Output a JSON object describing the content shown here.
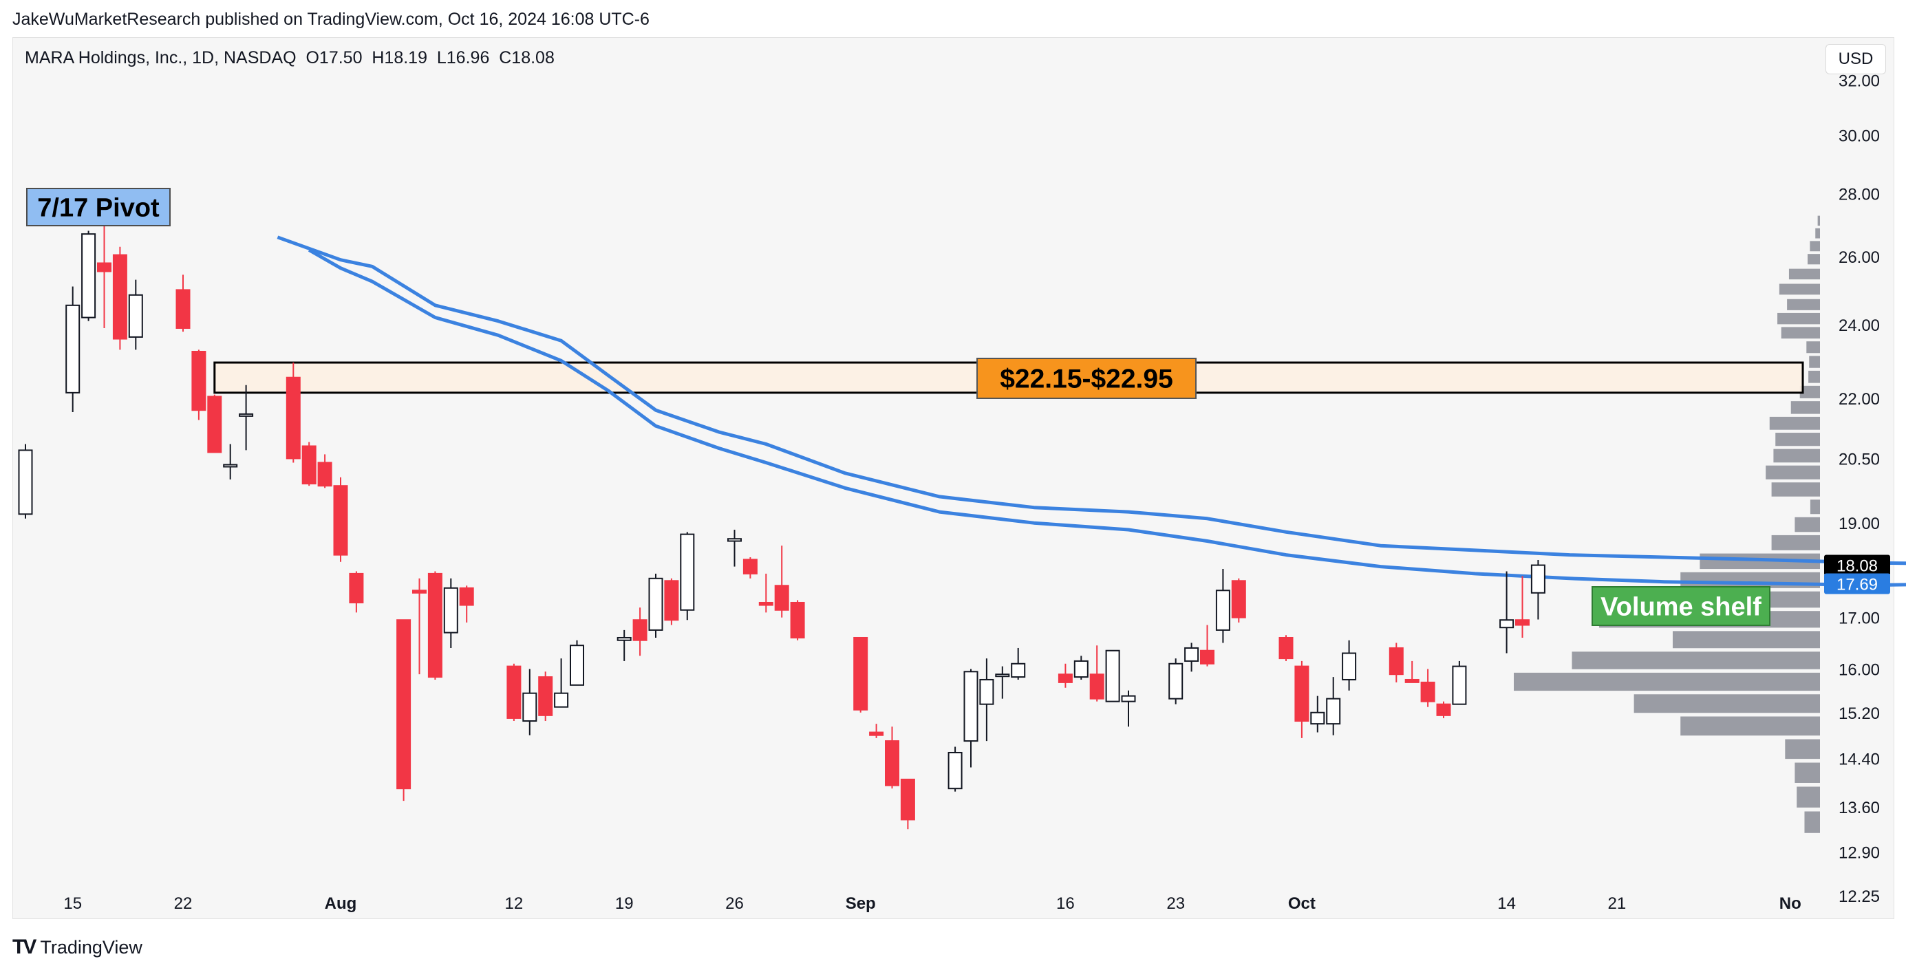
{
  "header": {
    "publisher_text": "JakeWuMarketResearch published on TradingView.com, Oct 16, 2024 16:08 UTC-6",
    "symbol_legend": "MARA Holdings, Inc., 1D, NASDAQ  O17.50  H18.19  L16.96  C18.08",
    "currency_button": "USD"
  },
  "footer": {
    "brand": "TradingView"
  },
  "colors": {
    "up": "#ffffff",
    "down": "#f23645",
    "outline": "#131722",
    "ema": "#3b82e0",
    "volume": "#9a9ca4",
    "zone_fill": "#fdf1e3",
    "pivot_bg": "#90bdf2",
    "range_bg": "#f7941d",
    "shelf_bg": "#4caf50"
  },
  "chart_data": {
    "type": "candlestick",
    "symbol": "MARA",
    "interval": "1D",
    "exchange": "NASDAQ",
    "last_bar": {
      "open": 17.5,
      "high": 18.19,
      "low": 16.96,
      "close": 18.08
    },
    "y_scale": "log",
    "ylim": [
      11.9,
      33.5
    ],
    "y_ticks": [
      32.0,
      30.0,
      28.0,
      26.0,
      24.0,
      22.0,
      20.5,
      19.0,
      17.0,
      16.0,
      15.2,
      14.4,
      13.6,
      12.9,
      12.25
    ],
    "y_tick_labels": [
      "32.00",
      "30.00",
      "28.00",
      "26.00",
      "24.00",
      "22.00",
      "20.50",
      "19.00",
      "17.00",
      "16.00",
      "15.20",
      "14.40",
      "13.60",
      "12.90",
      "12.25"
    ],
    "x_ticks": [
      {
        "label": "15",
        "bold": false,
        "date": "2024-07-15"
      },
      {
        "label": "22",
        "bold": false,
        "date": "2024-07-22"
      },
      {
        "label": "Aug",
        "bold": true,
        "date": "2024-08-01"
      },
      {
        "label": "12",
        "bold": false,
        "date": "2024-08-12"
      },
      {
        "label": "19",
        "bold": false,
        "date": "2024-08-19"
      },
      {
        "label": "26",
        "bold": false,
        "date": "2024-08-26"
      },
      {
        "label": "Sep",
        "bold": true,
        "date": "2024-09-03"
      },
      {
        "label": "16",
        "bold": false,
        "date": "2024-09-16"
      },
      {
        "label": "23",
        "bold": false,
        "date": "2024-09-23"
      },
      {
        "label": "Oct",
        "bold": true,
        "date": "2024-10-01"
      },
      {
        "label": "14",
        "bold": false,
        "date": "2024-10-14"
      },
      {
        "label": "21",
        "bold": false,
        "date": "2024-10-21"
      },
      {
        "label": "No",
        "bold": true,
        "date": "2024-11-01"
      }
    ],
    "candles": [
      {
        "d": "2024-07-12",
        "o": 19.2,
        "h": 20.85,
        "l": 19.1,
        "c": 20.7
      },
      {
        "d": "2024-07-15",
        "o": 22.15,
        "h": 25.1,
        "l": 21.65,
        "c": 24.55
      },
      {
        "d": "2024-07-16",
        "o": 24.2,
        "h": 26.8,
        "l": 24.1,
        "c": 26.7
      },
      {
        "d": "2024-07-17",
        "o": 25.8,
        "h": 27.2,
        "l": 23.9,
        "c": 25.55
      },
      {
        "d": "2024-07-18",
        "o": 26.05,
        "h": 26.3,
        "l": 23.3,
        "c": 23.6
      },
      {
        "d": "2024-07-19",
        "o": 23.65,
        "h": 25.3,
        "l": 23.3,
        "c": 24.85
      },
      {
        "d": "2024-07-22",
        "o": 25.0,
        "h": 25.45,
        "l": 23.8,
        "c": 23.9
      },
      {
        "d": "2024-07-23",
        "o": 23.25,
        "h": 23.3,
        "l": 21.45,
        "c": 21.7
      },
      {
        "d": "2024-07-24",
        "o": 22.05,
        "h": 22.1,
        "l": 20.7,
        "c": 20.65
      },
      {
        "d": "2024-07-25",
        "o": 20.35,
        "h": 20.85,
        "l": 20.0,
        "c": 20.35
      },
      {
        "d": "2024-07-26",
        "o": 21.55,
        "h": 22.35,
        "l": 20.7,
        "c": 21.6
      },
      {
        "d": "2024-07-29",
        "o": 22.55,
        "h": 22.95,
        "l": 20.4,
        "c": 20.5
      },
      {
        "d": "2024-07-30",
        "o": 20.8,
        "h": 20.9,
        "l": 19.85,
        "c": 19.9
      },
      {
        "d": "2024-07-31",
        "o": 20.4,
        "h": 20.6,
        "l": 19.8,
        "c": 19.85
      },
      {
        "d": "2024-08-01",
        "o": 19.85,
        "h": 20.05,
        "l": 18.15,
        "c": 18.3
      },
      {
        "d": "2024-08-02",
        "o": 17.9,
        "h": 17.95,
        "l": 17.1,
        "c": 17.3
      },
      {
        "d": "2024-08-05",
        "o": 16.95,
        "h": 16.95,
        "l": 13.7,
        "c": 13.9
      },
      {
        "d": "2024-08-06",
        "o": 17.55,
        "h": 17.8,
        "l": 15.9,
        "c": 17.5
      },
      {
        "d": "2024-08-07",
        "o": 17.9,
        "h": 17.95,
        "l": 15.8,
        "c": 15.85
      },
      {
        "d": "2024-08-08",
        "o": 16.7,
        "h": 17.8,
        "l": 16.4,
        "c": 17.6
      },
      {
        "d": "2024-08-09",
        "o": 17.6,
        "h": 17.65,
        "l": 16.9,
        "c": 17.25
      },
      {
        "d": "2024-08-12",
        "o": 16.05,
        "h": 16.1,
        "l": 15.05,
        "c": 15.1
      },
      {
        "d": "2024-08-13",
        "o": 15.05,
        "h": 16.0,
        "l": 14.8,
        "c": 15.55
      },
      {
        "d": "2024-08-14",
        "o": 15.85,
        "h": 15.95,
        "l": 15.05,
        "c": 15.15
      },
      {
        "d": "2024-08-15",
        "o": 15.3,
        "h": 16.2,
        "l": 15.3,
        "c": 15.55
      },
      {
        "d": "2024-08-16",
        "o": 15.7,
        "h": 16.55,
        "l": 15.7,
        "c": 16.45
      },
      {
        "d": "2024-08-19",
        "o": 16.55,
        "h": 16.75,
        "l": 16.15,
        "c": 16.6
      },
      {
        "d": "2024-08-20",
        "o": 16.95,
        "h": 17.2,
        "l": 16.25,
        "c": 16.55
      },
      {
        "d": "2024-08-21",
        "o": 16.75,
        "h": 17.9,
        "l": 16.6,
        "c": 17.8
      },
      {
        "d": "2024-08-22",
        "o": 17.75,
        "h": 17.8,
        "l": 16.85,
        "c": 16.95
      },
      {
        "d": "2024-08-23",
        "o": 17.15,
        "h": 18.8,
        "l": 16.95,
        "c": 18.75
      },
      {
        "d": "2024-08-26",
        "o": 18.6,
        "h": 18.85,
        "l": 18.05,
        "c": 18.65
      },
      {
        "d": "2024-08-27",
        "o": 18.2,
        "h": 18.25,
        "l": 17.8,
        "c": 17.9
      },
      {
        "d": "2024-08-28",
        "o": 17.3,
        "h": 17.9,
        "l": 17.1,
        "c": 17.25
      },
      {
        "d": "2024-08-29",
        "o": 17.65,
        "h": 18.5,
        "l": 17.0,
        "c": 17.15
      },
      {
        "d": "2024-08-30",
        "o": 17.3,
        "h": 17.35,
        "l": 16.55,
        "c": 16.6
      },
      {
        "d": "2024-09-03",
        "o": 16.6,
        "h": 16.6,
        "l": 15.2,
        "c": 15.25
      },
      {
        "d": "2024-09-04",
        "o": 14.85,
        "h": 15.0,
        "l": 14.75,
        "c": 14.8
      },
      {
        "d": "2024-09-05",
        "o": 14.7,
        "h": 14.95,
        "l": 13.9,
        "c": 13.95
      },
      {
        "d": "2024-09-06",
        "o": 14.05,
        "h": 14.05,
        "l": 13.25,
        "c": 13.4
      },
      {
        "d": "2024-09-09",
        "o": 13.9,
        "h": 14.6,
        "l": 13.85,
        "c": 14.5
      },
      {
        "d": "2024-09-10",
        "o": 14.7,
        "h": 16.0,
        "l": 14.25,
        "c": 15.95
      },
      {
        "d": "2024-09-11",
        "o": 15.35,
        "h": 16.2,
        "l": 14.7,
        "c": 15.8
      },
      {
        "d": "2024-09-12",
        "o": 15.9,
        "h": 16.05,
        "l": 15.45,
        "c": 15.9
      },
      {
        "d": "2024-09-13",
        "o": 15.85,
        "h": 16.4,
        "l": 15.8,
        "c": 16.1
      },
      {
        "d": "2024-09-16",
        "o": 15.9,
        "h": 16.1,
        "l": 15.65,
        "c": 15.75
      },
      {
        "d": "2024-09-17",
        "o": 15.85,
        "h": 16.25,
        "l": 15.8,
        "c": 16.15
      },
      {
        "d": "2024-09-18",
        "o": 15.9,
        "h": 16.45,
        "l": 15.4,
        "c": 15.45
      },
      {
        "d": "2024-09-19",
        "o": 15.4,
        "h": 16.35,
        "l": 15.4,
        "c": 16.35
      },
      {
        "d": "2024-09-20",
        "o": 15.4,
        "h": 15.6,
        "l": 14.95,
        "c": 15.5
      },
      {
        "d": "2024-09-23",
        "o": 15.45,
        "h": 16.2,
        "l": 15.35,
        "c": 16.1
      },
      {
        "d": "2024-09-24",
        "o": 16.15,
        "h": 16.5,
        "l": 15.95,
        "c": 16.4
      },
      {
        "d": "2024-09-25",
        "o": 16.35,
        "h": 16.85,
        "l": 16.05,
        "c": 16.1
      },
      {
        "d": "2024-09-26",
        "o": 16.75,
        "h": 18.0,
        "l": 16.5,
        "c": 17.55
      },
      {
        "d": "2024-09-27",
        "o": 17.75,
        "h": 17.8,
        "l": 16.9,
        "c": 17.0
      },
      {
        "d": "2024-09-30",
        "o": 16.6,
        "h": 16.65,
        "l": 16.15,
        "c": 16.2
      },
      {
        "d": "2024-10-01",
        "o": 16.05,
        "h": 16.15,
        "l": 14.75,
        "c": 15.05
      },
      {
        "d": "2024-10-02",
        "o": 15.0,
        "h": 15.5,
        "l": 14.85,
        "c": 15.2
      },
      {
        "d": "2024-10-03",
        "o": 15.0,
        "h": 15.85,
        "l": 14.8,
        "c": 15.45
      },
      {
        "d": "2024-10-04",
        "o": 15.8,
        "h": 16.55,
        "l": 15.6,
        "c": 16.3
      },
      {
        "d": "2024-10-07",
        "o": 16.4,
        "h": 16.5,
        "l": 15.75,
        "c": 15.9
      },
      {
        "d": "2024-10-08",
        "o": 15.8,
        "h": 16.15,
        "l": 15.75,
        "c": 15.75
      },
      {
        "d": "2024-10-09",
        "o": 15.75,
        "h": 16.0,
        "l": 15.3,
        "c": 15.4
      },
      {
        "d": "2024-10-10",
        "o": 15.35,
        "h": 15.4,
        "l": 15.1,
        "c": 15.15
      },
      {
        "d": "2024-10-11",
        "o": 15.35,
        "h": 16.15,
        "l": 15.35,
        "c": 16.05
      },
      {
        "d": "2024-10-14",
        "o": 16.8,
        "h": 17.95,
        "l": 16.3,
        "c": 16.95
      },
      {
        "d": "2024-10-15",
        "o": 16.95,
        "h": 17.85,
        "l": 16.6,
        "c": 16.85
      },
      {
        "d": "2024-10-16",
        "o": 17.5,
        "h": 18.19,
        "l": 16.96,
        "c": 18.08
      }
    ],
    "ema_series": [
      {
        "name": "",
        "values": [
          [
            16,
            26.6
          ],
          [
            20,
            25.9
          ],
          [
            22,
            25.7
          ],
          [
            26,
            24.55
          ],
          [
            30,
            24.1
          ],
          [
            34,
            23.55
          ],
          [
            37,
            22.6
          ],
          [
            40,
            21.7
          ],
          [
            44,
            21.15
          ],
          [
            47,
            20.85
          ],
          [
            52,
            20.15
          ],
          [
            58,
            19.6
          ],
          [
            64,
            19.35
          ],
          [
            70,
            19.25
          ],
          [
            75,
            19.1
          ],
          [
            80,
            18.8
          ],
          [
            86,
            18.5
          ],
          [
            92,
            18.4
          ],
          [
            98,
            18.3
          ],
          [
            104,
            18.25
          ],
          [
            110,
            18.2
          ],
          [
            117,
            18.13
          ],
          [
            124,
            18.1
          ]
        ]
      },
      {
        "name": "",
        "values": [
          [
            18,
            26.2
          ],
          [
            20,
            25.65
          ],
          [
            22,
            25.25
          ],
          [
            26,
            24.2
          ],
          [
            30,
            23.7
          ],
          [
            34,
            23.0
          ],
          [
            37,
            22.2
          ],
          [
            40,
            21.3
          ],
          [
            44,
            20.75
          ],
          [
            47,
            20.4
          ],
          [
            52,
            19.8
          ],
          [
            58,
            19.25
          ],
          [
            64,
            19.0
          ],
          [
            70,
            18.85
          ],
          [
            75,
            18.6
          ],
          [
            80,
            18.3
          ],
          [
            86,
            18.05
          ],
          [
            92,
            17.9
          ],
          [
            98,
            17.8
          ],
          [
            104,
            17.73
          ],
          [
            110,
            17.7
          ],
          [
            117,
            17.66
          ],
          [
            124,
            17.69
          ]
        ]
      }
    ],
    "price_labels": [
      {
        "value": 18.08,
        "text": "18.08",
        "color": "#000000"
      },
      {
        "value": 17.69,
        "text": "17.69",
        "color": "#2a7de1"
      }
    ],
    "volume_profile": [
      {
        "price": 27.1,
        "volume": 0.6
      },
      {
        "price": 26.7,
        "volume": 1.2
      },
      {
        "price": 26.3,
        "volume": 2.6
      },
      {
        "price": 25.9,
        "volume": 3.2
      },
      {
        "price": 25.45,
        "volume": 8.0
      },
      {
        "price": 25.0,
        "volume": 10.5
      },
      {
        "price": 24.55,
        "volume": 8.5
      },
      {
        "price": 24.15,
        "volume": 11.0
      },
      {
        "price": 23.75,
        "volume": 10.0
      },
      {
        "price": 23.35,
        "volume": 3.5
      },
      {
        "price": 22.95,
        "volume": 2.8
      },
      {
        "price": 22.55,
        "volume": 3.0
      },
      {
        "price": 22.15,
        "volume": 5.2
      },
      {
        "price": 21.75,
        "volume": 7.5
      },
      {
        "price": 21.35,
        "volume": 13.0
      },
      {
        "price": 20.95,
        "volume": 11.5
      },
      {
        "price": 20.55,
        "volume": 12.0
      },
      {
        "price": 20.15,
        "volume": 14.0
      },
      {
        "price": 19.75,
        "volume": 12.5
      },
      {
        "price": 19.35,
        "volume": 2.5
      },
      {
        "price": 18.95,
        "volume": 6.5
      },
      {
        "price": 18.55,
        "volume": 12.5
      },
      {
        "price": 18.15,
        "volume": 31.0
      },
      {
        "price": 17.75,
        "volume": 36.0
      },
      {
        "price": 17.35,
        "volume": 33.0
      },
      {
        "price": 16.95,
        "volume": 57.0
      },
      {
        "price": 16.55,
        "volume": 38.0
      },
      {
        "price": 16.15,
        "volume": 64.0
      },
      {
        "price": 15.75,
        "volume": 79.0
      },
      {
        "price": 15.35,
        "volume": 48.0
      },
      {
        "price": 14.95,
        "volume": 36.0
      },
      {
        "price": 14.55,
        "volume": 9.0
      },
      {
        "price": 14.15,
        "volume": 6.5
      },
      {
        "price": 13.75,
        "volume": 6.0
      },
      {
        "price": 13.35,
        "volume": 4.0
      }
    ],
    "zone": {
      "low": 22.15,
      "high": 22.95,
      "start": "2024-07-24"
    },
    "annotations": {
      "pivot": {
        "text": "7/17 Pivot"
      },
      "range": {
        "text": "$22.15-$22.95"
      },
      "shelf": {
        "text": "Volume shelf"
      }
    }
  }
}
